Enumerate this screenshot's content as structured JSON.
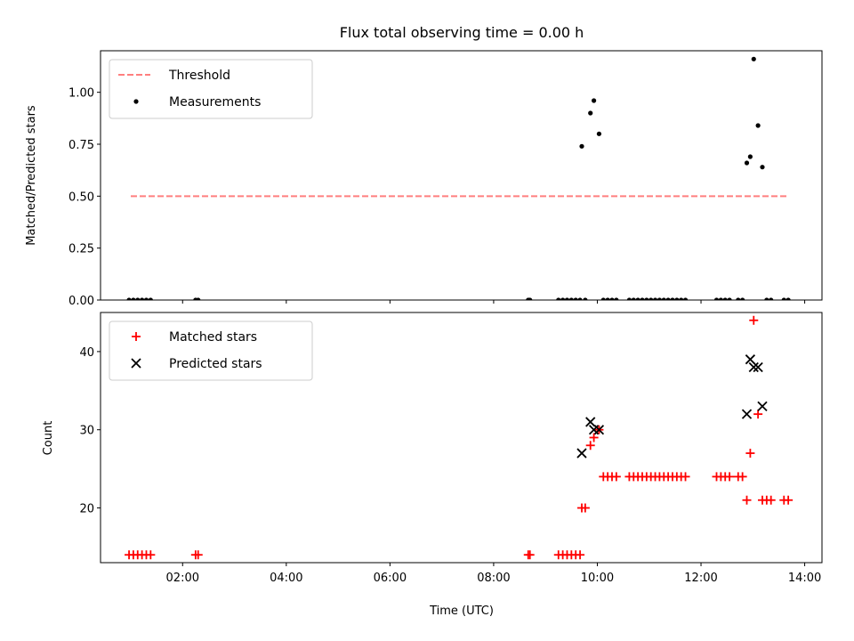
{
  "figure": {
    "title": "Flux total observing time = 0.00 h",
    "xlabel": "Time (UTC)"
  },
  "chart_data": [
    {
      "type": "scatter",
      "ylabel": "Matched/Predicted stars",
      "xlim": [
        "00:25",
        "14:20"
      ],
      "ylim": [
        0,
        1.2
      ],
      "yticks": [
        0.0,
        0.25,
        0.5,
        0.75,
        1.0
      ],
      "yticklabels": [
        "0.00",
        "0.25",
        "0.50",
        "0.75",
        "1.00"
      ],
      "grid": false,
      "legend_position": "upper-left",
      "threshold": {
        "name": "Threshold",
        "value": 0.5,
        "x_start": "01:00",
        "x_end": "13:40",
        "color": "#ff7f7f",
        "style": "dashed"
      },
      "series": [
        {
          "name": "Measurements",
          "color": "#000000",
          "marker": "dot",
          "points": [
            [
              "00:58",
              0
            ],
            [
              "01:03",
              0
            ],
            [
              "01:08",
              0
            ],
            [
              "01:13",
              0
            ],
            [
              "01:18",
              0
            ],
            [
              "01:23",
              0
            ],
            [
              "02:15",
              0
            ],
            [
              "02:18",
              0
            ],
            [
              "08:40",
              0
            ],
            [
              "08:42",
              0
            ],
            [
              "09:15",
              0
            ],
            [
              "09:20",
              0
            ],
            [
              "09:25",
              0
            ],
            [
              "09:30",
              0
            ],
            [
              "09:35",
              0
            ],
            [
              "09:40",
              0
            ],
            [
              "09:42",
              0.74
            ],
            [
              "09:46",
              0
            ],
            [
              "09:52",
              0.9
            ],
            [
              "09:56",
              0.96
            ],
            [
              "10:02",
              0.8
            ],
            [
              "10:07",
              0
            ],
            [
              "10:12",
              0
            ],
            [
              "10:17",
              0
            ],
            [
              "10:22",
              0
            ],
            [
              "10:37",
              0
            ],
            [
              "10:42",
              0
            ],
            [
              "10:47",
              0
            ],
            [
              "10:52",
              0
            ],
            [
              "10:57",
              0
            ],
            [
              "11:02",
              0
            ],
            [
              "11:07",
              0
            ],
            [
              "11:12",
              0
            ],
            [
              "11:17",
              0
            ],
            [
              "11:22",
              0
            ],
            [
              "11:27",
              0
            ],
            [
              "11:32",
              0
            ],
            [
              "11:37",
              0
            ],
            [
              "11:42",
              0
            ],
            [
              "12:18",
              0
            ],
            [
              "12:23",
              0
            ],
            [
              "12:28",
              0
            ],
            [
              "12:33",
              0
            ],
            [
              "12:43",
              0
            ],
            [
              "12:48",
              0
            ],
            [
              "12:53",
              0.66
            ],
            [
              "12:57",
              0.69
            ],
            [
              "13:01",
              1.16
            ],
            [
              "13:06",
              0.84
            ],
            [
              "13:11",
              0.64
            ],
            [
              "13:16",
              0
            ],
            [
              "13:21",
              0
            ],
            [
              "13:36",
              0
            ],
            [
              "13:41",
              0
            ]
          ]
        }
      ]
    },
    {
      "type": "scatter",
      "ylabel": "Count",
      "xlim": [
        "00:25",
        "14:20"
      ],
      "ylim": [
        13,
        45
      ],
      "yticks": [
        20,
        30,
        40
      ],
      "yticklabels": [
        "20",
        "30",
        "40"
      ],
      "xticks": [
        "02:00",
        "04:00",
        "06:00",
        "08:00",
        "10:00",
        "12:00",
        "14:00"
      ],
      "xticklabels": [
        "02:00",
        "04:00",
        "06:00",
        "08:00",
        "10:00",
        "12:00",
        "14:00"
      ],
      "grid": false,
      "legend_position": "upper-left",
      "series": [
        {
          "name": "Matched stars",
          "color": "#ff0000",
          "marker": "plus",
          "points": [
            [
              "00:58",
              14
            ],
            [
              "01:03",
              14
            ],
            [
              "01:08",
              14
            ],
            [
              "01:13",
              14
            ],
            [
              "01:18",
              14
            ],
            [
              "01:23",
              14
            ],
            [
              "02:15",
              14
            ],
            [
              "02:18",
              14
            ],
            [
              "08:40",
              14
            ],
            [
              "08:42",
              14
            ],
            [
              "09:15",
              14
            ],
            [
              "09:20",
              14
            ],
            [
              "09:25",
              14
            ],
            [
              "09:30",
              14
            ],
            [
              "09:35",
              14
            ],
            [
              "09:40",
              14
            ],
            [
              "09:42",
              20
            ],
            [
              "09:46",
              20
            ],
            [
              "09:52",
              28
            ],
            [
              "09:56",
              29
            ],
            [
              "10:02",
              30
            ],
            [
              "10:07",
              24
            ],
            [
              "10:12",
              24
            ],
            [
              "10:17",
              24
            ],
            [
              "10:22",
              24
            ],
            [
              "10:37",
              24
            ],
            [
              "10:42",
              24
            ],
            [
              "10:47",
              24
            ],
            [
              "10:52",
              24
            ],
            [
              "10:57",
              24
            ],
            [
              "11:02",
              24
            ],
            [
              "11:07",
              24
            ],
            [
              "11:12",
              24
            ],
            [
              "11:17",
              24
            ],
            [
              "11:22",
              24
            ],
            [
              "11:27",
              24
            ],
            [
              "11:32",
              24
            ],
            [
              "11:37",
              24
            ],
            [
              "11:42",
              24
            ],
            [
              "12:18",
              24
            ],
            [
              "12:23",
              24
            ],
            [
              "12:28",
              24
            ],
            [
              "12:33",
              24
            ],
            [
              "12:43",
              24
            ],
            [
              "12:48",
              24
            ],
            [
              "12:53",
              21
            ],
            [
              "12:57",
              27
            ],
            [
              "13:01",
              44
            ],
            [
              "13:06",
              32
            ],
            [
              "13:11",
              21
            ],
            [
              "13:16",
              21
            ],
            [
              "13:21",
              21
            ],
            [
              "13:36",
              21
            ],
            [
              "13:41",
              21
            ]
          ]
        },
        {
          "name": "Predicted stars",
          "color": "#000000",
          "marker": "x",
          "points": [
            [
              "09:42",
              27
            ],
            [
              "09:52",
              31
            ],
            [
              "09:56",
              30
            ],
            [
              "10:02",
              30
            ],
            [
              "12:53",
              32
            ],
            [
              "12:57",
              39
            ],
            [
              "13:01",
              38
            ],
            [
              "13:06",
              38
            ],
            [
              "13:11",
              33
            ]
          ]
        }
      ]
    }
  ]
}
